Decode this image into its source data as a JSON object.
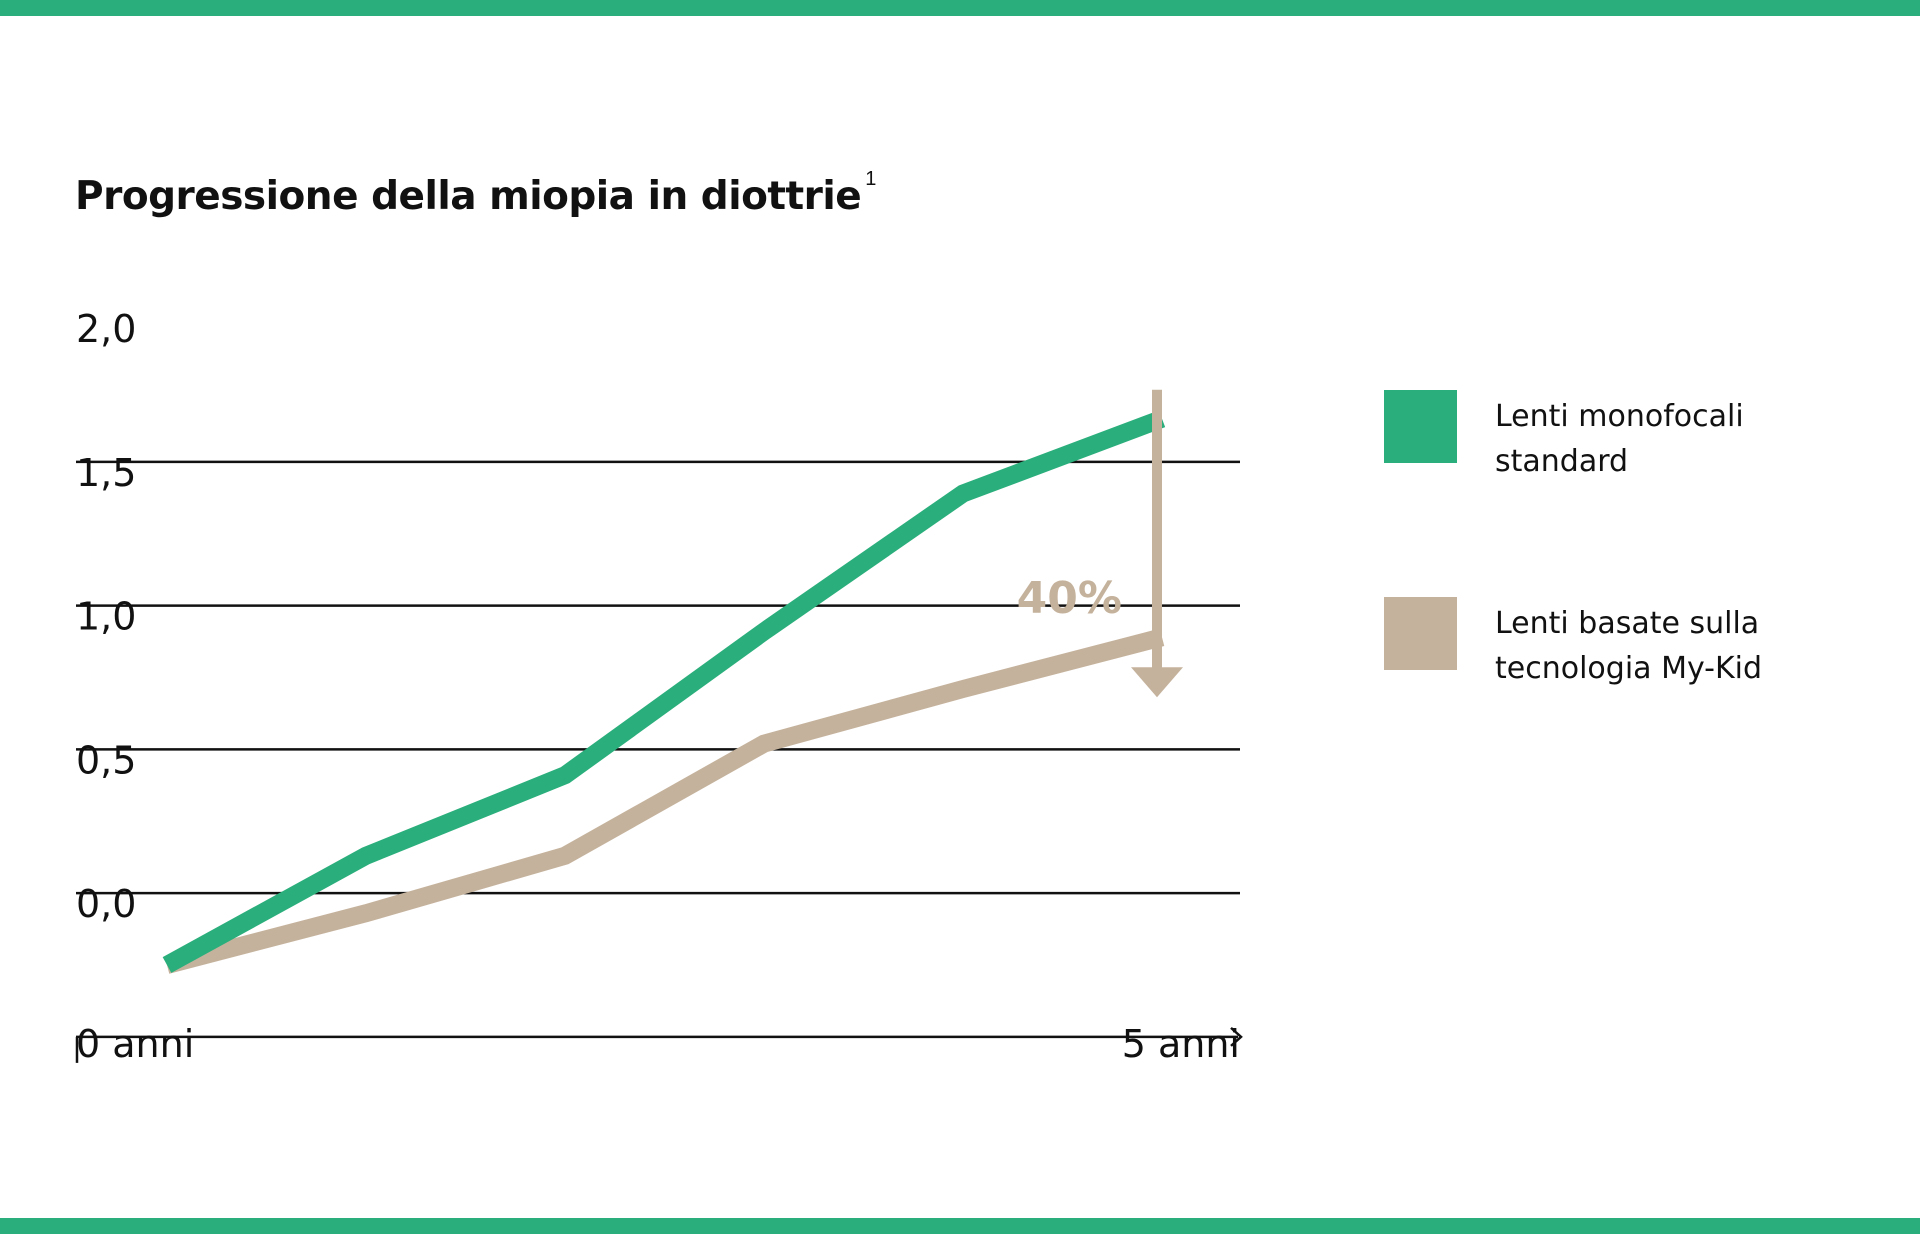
{
  "title": "Progressione della miopia in diottrie",
  "title_footnote": "1",
  "colors": {
    "band": "#2aae7b",
    "green": "#2aae7b",
    "beige": "#c5b29c",
    "axis": "#111111"
  },
  "legend": [
    {
      "label_line1": "Lenti monofocali",
      "label_line2": "standard",
      "color": "#2aae7b"
    },
    {
      "label_line1": "Lenti basate sulla",
      "label_line2": "tecnologia My-Kid",
      "color": "#c5b29c"
    }
  ],
  "annotation": {
    "text": "40%",
    "color": "#c5b29c"
  },
  "chart_data": {
    "type": "line",
    "title": "Progressione della miopia in diottrie",
    "y_tick_labels": [
      "2,0",
      "1,5",
      "1,0",
      "0,5",
      "0,0"
    ],
    "ylim": [
      0,
      2.0
    ],
    "x_tick_labels": [
      "0 anni",
      "5 anni"
    ],
    "xlim": [
      0,
      5
    ],
    "grid": true,
    "legend_position": "right",
    "series": [
      {
        "name": "Lenti monofocali standard",
        "color": "#2aae7b",
        "x": [
          0,
          1,
          2,
          3,
          4,
          5
        ],
        "y": [
          0.0,
          0.38,
          0.66,
          1.16,
          1.64,
          1.9
        ]
      },
      {
        "name": "Lenti basate sulla tecnologia My-Kid",
        "color": "#c5b29c",
        "x": [
          0,
          1,
          2,
          3,
          4,
          5
        ],
        "y": [
          0.0,
          0.18,
          0.38,
          0.77,
          0.96,
          1.14
        ]
      }
    ],
    "annotations": [
      {
        "text": "40%",
        "x": 5,
        "from_y": 1.9,
        "to_y": 1.14
      }
    ]
  }
}
